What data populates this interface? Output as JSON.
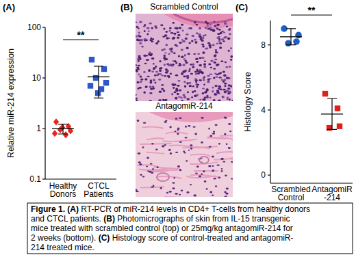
{
  "panel_labels": [
    "(A)",
    "(B)",
    "(C)"
  ],
  "chart_data": [
    {
      "type": "dot",
      "ylabel": "Relative miR-214 expression",
      "categories": [
        "Healthy\nDonors",
        "CTCL\nPatients"
      ],
      "groups": [
        {
          "values": [
            1.35,
            1.1,
            0.95,
            0.9,
            0.8,
            0.75,
            1.05
          ],
          "mean": 1.0,
          "sd": 0.22,
          "color": "#e8261f",
          "marker": "diamond"
        },
        {
          "values": [
            23,
            15,
            10,
            8,
            7,
            6,
            5
          ],
          "mean": 10.5,
          "sd": 6.5,
          "color": "#2e55c9",
          "marker": "square"
        }
      ],
      "log": "y",
      "ylim": [
        0.1,
        100
      ],
      "yticks": [
        0.1,
        1,
        10,
        100
      ],
      "annotation": "**"
    },
    {
      "type": "dot",
      "ylabel": "Histology Score",
      "categories": [
        "Scrambled\nControl",
        "AntagomiR\n-214"
      ],
      "groups": [
        {
          "values": [
            9.0,
            8.2,
            8.1,
            8.6
          ],
          "mean": 8.5,
          "sd": 0.5,
          "color": "#1f5fc5",
          "marker": "circle"
        },
        {
          "values": [
            5.0,
            4.1,
            2.9,
            3.0
          ],
          "mean": 3.75,
          "sd": 0.95,
          "color": "#e0201b",
          "marker": "square"
        }
      ],
      "ylim": [
        -0.5,
        9.5
      ],
      "yticks": [
        0,
        4,
        8
      ],
      "annotation": "**"
    }
  ],
  "panel_b": {
    "titles": [
      "Scrambled Control",
      "AntagomiR-214"
    ]
  },
  "caption": {
    "lines": [
      "Figure 1. (A) RT-PCR of miR-214 levels in CD4+ T-cells from healthy donors",
      "and CTCL patients. (B) Photomicrographs of skin from IL-15 transgenic",
      "mice treated with scrambled control (top) or 25mg/kg antagomiR-214 for",
      "2 weeks (bottom). (C) Histology score of control-treated and antagomiR-",
      "214 treated mice."
    ]
  }
}
